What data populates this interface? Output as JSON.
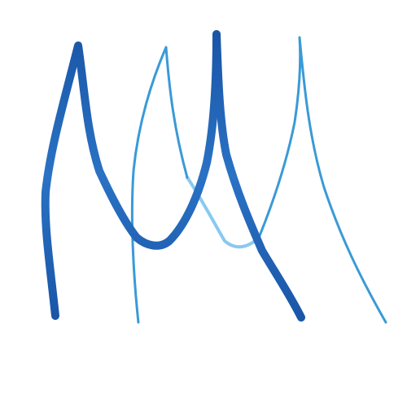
{
  "background": "#ffffff",
  "strokes": [
    {
      "name": "thick-stroke-left",
      "color": "#1f5fb0",
      "weight": "thick"
    },
    {
      "name": "thick-stroke-right",
      "color": "#1f5fb0",
      "weight": "thick"
    },
    {
      "name": "thin-stroke-middle",
      "color": "#3a9ad6",
      "weight": "thin"
    },
    {
      "name": "thin-stroke-right",
      "color": "#3a9ad6",
      "weight": "thin"
    },
    {
      "name": "light-stroke-connector",
      "color": "#7cc3ee",
      "weight": "medium"
    }
  ]
}
